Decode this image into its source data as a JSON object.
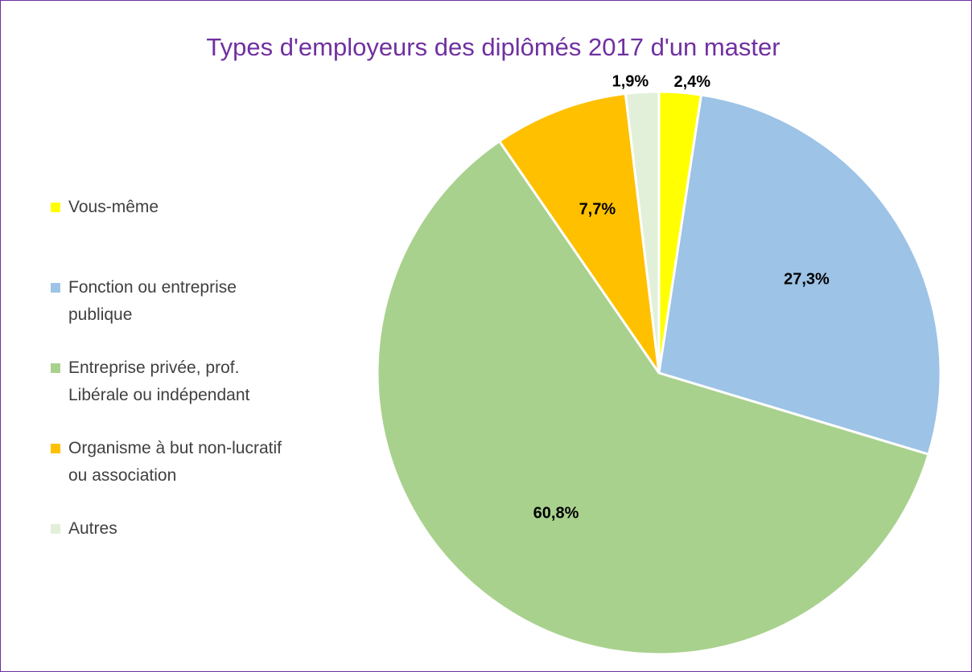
{
  "chart_data": {
    "type": "pie",
    "title": "Types d'employeurs des diplômés 2017 d'un master",
    "categories": [
      "Vous-même",
      "Fonction ou entreprise publique",
      "Entreprise privée, prof. Libérale ou indépendant",
      "Organisme à but non-lucratif ou association",
      "Autres"
    ],
    "values": [
      2.4,
      27.3,
      60.8,
      7.7,
      1.9
    ],
    "value_labels": [
      "2,4%",
      "27,3%",
      "60,8%",
      "7,7%",
      "1,9%"
    ],
    "colors": [
      "#ffff00",
      "#9dc3e6",
      "#a9d18e",
      "#ffc000",
      "#e2f0d9"
    ],
    "legend": "left"
  }
}
